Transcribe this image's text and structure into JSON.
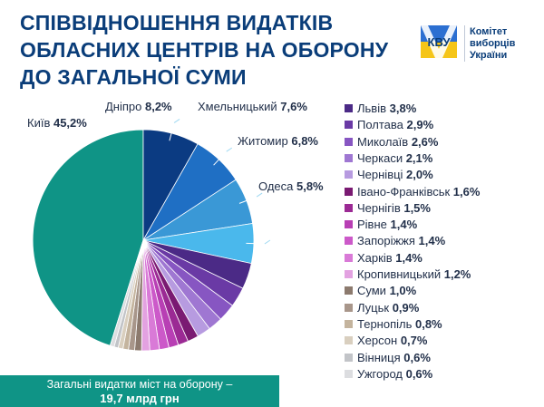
{
  "title": {
    "line1": "Співвідношення видатків",
    "line2": "обласних центрів на оборону",
    "line3": "до загальної суми"
  },
  "logo": {
    "mark_text": "КВУ",
    "org_line1": "Комітет",
    "org_line2": "виборців",
    "org_line3": "України"
  },
  "total": {
    "line1": "Загальні видатки міст на оборону –",
    "line2": "19,7 млрд грн"
  },
  "chart_data": {
    "type": "pie",
    "title": "Співвідношення видатків обласних центрів на оборону до загальної суми",
    "start_angle_deg": 180,
    "direction": "clockwise",
    "slices": [
      {
        "name": "Київ",
        "value": 45.2,
        "label": "45,2%",
        "color": "#0f9486"
      },
      {
        "name": "Дніпро",
        "value": 8.2,
        "label": "8,2%",
        "color": "#0b3b82"
      },
      {
        "name": "Хмельницький",
        "value": 7.6,
        "label": "7,6%",
        "color": "#1f6fc4"
      },
      {
        "name": "Житомир",
        "value": 6.8,
        "label": "6,8%",
        "color": "#3a98d6"
      },
      {
        "name": "Одеса",
        "value": 5.8,
        "label": "5,8%",
        "color": "#4ab8ec"
      },
      {
        "name": "Львів",
        "value": 3.8,
        "label": "3,8%",
        "color": "#4b2a86"
      },
      {
        "name": "Полтава",
        "value": 2.9,
        "label": "2,9%",
        "color": "#6a3aa5"
      },
      {
        "name": "Миколаїв",
        "value": 2.6,
        "label": "2,6%",
        "color": "#8756c2"
      },
      {
        "name": "Черкаси",
        "value": 2.1,
        "label": "2,1%",
        "color": "#9f77d2"
      },
      {
        "name": "Чернівці",
        "value": 2.0,
        "label": "2,0%",
        "color": "#b79be0"
      },
      {
        "name": "Івано-Франківськ",
        "value": 1.6,
        "label": "1,6%",
        "color": "#7a1a72"
      },
      {
        "name": "Чернігів",
        "value": 1.5,
        "label": "1,5%",
        "color": "#9b2a94"
      },
      {
        "name": "Рівне",
        "value": 1.4,
        "label": "1,4%",
        "color": "#b83fb4"
      },
      {
        "name": "Запоріжжя",
        "value": 1.4,
        "label": "1,4%",
        "color": "#cc59c9"
      },
      {
        "name": "Харків",
        "value": 1.4,
        "label": "1,4%",
        "color": "#d97ad7"
      },
      {
        "name": "Кропивницький",
        "value": 1.2,
        "label": "1,2%",
        "color": "#e3a2e1"
      },
      {
        "name": "Суми",
        "value": 1.0,
        "label": "1,0%",
        "color": "#8c7a6e"
      },
      {
        "name": "Луцьк",
        "value": 0.9,
        "label": "0,9%",
        "color": "#a8968a"
      },
      {
        "name": "Тернопіль",
        "value": 0.8,
        "label": "0,8%",
        "color": "#c4b49e"
      },
      {
        "name": "Херсон",
        "value": 0.7,
        "label": "0,7%",
        "color": "#d9cfbf"
      },
      {
        "name": "Вінниця",
        "value": 0.6,
        "label": "0,6%",
        "color": "#c2c4c8"
      },
      {
        "name": "Ужгород",
        "value": 0.6,
        "label": "0,6%",
        "color": "#dcdde0"
      }
    ],
    "outer_labels": [
      "Київ",
      "Дніпро",
      "Хмельницький",
      "Житомир",
      "Одеса"
    ],
    "legend": [
      "Львів",
      "Полтава",
      "Миколаїв",
      "Черкаси",
      "Чернівці",
      "Івано-Франківськ",
      "Чернігів",
      "Рівне",
      "Запоріжжя",
      "Харків",
      "Кропивницький",
      "Суми",
      "Луцьк",
      "Тернопіль",
      "Херсон",
      "Вінниця",
      "Ужгород"
    ],
    "legend_placement": "right"
  }
}
